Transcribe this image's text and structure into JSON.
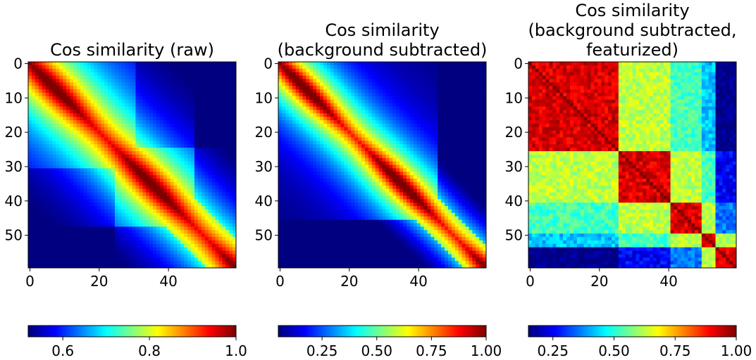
{
  "chart_data": [
    {
      "type": "heatmap",
      "title_lines": [
        "Cos similarity (raw)"
      ],
      "size": 60,
      "colormap": "jet",
      "x_ticks": [
        0,
        20,
        40
      ],
      "y_ticks": [
        0,
        10,
        20,
        30,
        40,
        50
      ],
      "colorbar": {
        "vmin": 0.52,
        "vmax": 1.0,
        "ticks": [
          0.6,
          0.8,
          1.0
        ],
        "tick_labels": [
          "0.6",
          "0.8",
          "1.0"
        ]
      },
      "values_description": "Symmetric similarity matrix; 1.0 on the diagonal, high values near the diagonal, lowest (~0.52) far from it"
    },
    {
      "type": "heatmap",
      "title_lines": [
        "Cos similarity",
        "(background subtracted)"
      ],
      "size": 60,
      "colormap": "jet",
      "x_ticks": [
        0,
        20,
        40
      ],
      "y_ticks": [
        0,
        10,
        20,
        30,
        40,
        50
      ],
      "colorbar": {
        "vmin": 0.05,
        "vmax": 1.0,
        "ticks": [
          0.25,
          0.5,
          0.75,
          1.0
        ],
        "tick_labels": [
          "0.25",
          "0.50",
          "0.75",
          "1.00"
        ]
      }
    },
    {
      "type": "heatmap",
      "title_lines": [
        "Cos similarity",
        "(background subtracted,",
        "featurized)"
      ],
      "size": 60,
      "colormap": "jet",
      "x_ticks": [
        0,
        20,
        40
      ],
      "y_ticks": [
        0,
        10,
        20,
        30,
        40,
        50
      ],
      "colorbar": {
        "vmin": 0.15,
        "vmax": 1.0,
        "ticks": [
          0.25,
          0.5,
          0.75,
          1.0
        ],
        "tick_labels": [
          "0.25",
          "0.50",
          "0.75",
          "1.00"
        ]
      },
      "blocks": [
        [
          0,
          25
        ],
        [
          26,
          40
        ],
        [
          41,
          49
        ],
        [
          50,
          53
        ],
        [
          54,
          59
        ]
      ]
    }
  ]
}
